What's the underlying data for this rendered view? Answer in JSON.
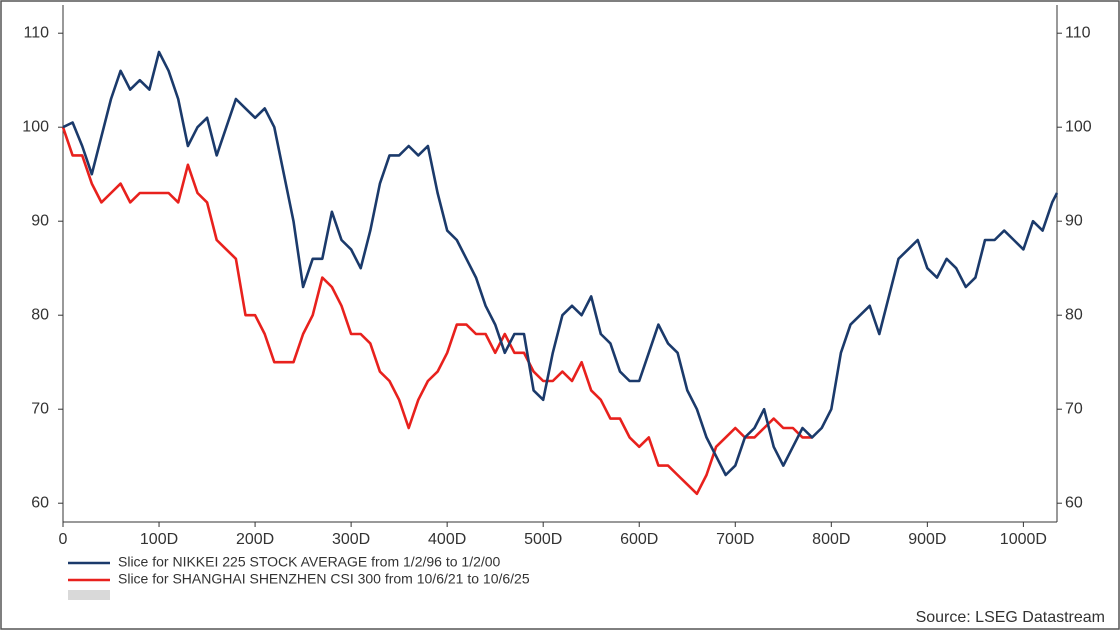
{
  "chart_data": {
    "type": "line",
    "xlim": [
      0,
      1035
    ],
    "xticks": [
      0,
      {
        "value": 100,
        "label": "100D"
      },
      {
        "value": 200,
        "label": "200D"
      },
      {
        "value": 300,
        "label": "300D"
      },
      {
        "value": 400,
        "label": "400D"
      },
      {
        "value": 500,
        "label": "500D"
      },
      {
        "value": 600,
        "label": "600D"
      },
      {
        "value": 700,
        "label": "700D"
      },
      {
        "value": 800,
        "label": "800D"
      },
      {
        "value": 900,
        "label": "900D"
      },
      {
        "value": 1000,
        "label": "1000D"
      }
    ],
    "ylim": [
      58,
      113
    ],
    "yticks": [
      60,
      70,
      80,
      90,
      100,
      110
    ],
    "y2lim": [
      58,
      113
    ],
    "y2ticks": [
      60,
      70,
      80,
      90,
      100,
      110
    ],
    "series": [
      {
        "name": "Slice for NIKKEI 225 STOCK AVERAGE from 1/2/96 to 1/2/00",
        "color": "#1b3a6b",
        "x": [
          0,
          10,
          20,
          30,
          40,
          50,
          60,
          70,
          80,
          90,
          100,
          110,
          120,
          130,
          140,
          150,
          160,
          170,
          180,
          190,
          200,
          210,
          220,
          230,
          240,
          250,
          260,
          270,
          280,
          290,
          300,
          310,
          320,
          330,
          340,
          350,
          360,
          370,
          380,
          390,
          400,
          410,
          420,
          430,
          440,
          450,
          460,
          470,
          480,
          490,
          500,
          510,
          520,
          530,
          540,
          550,
          560,
          570,
          580,
          590,
          600,
          610,
          620,
          630,
          640,
          650,
          660,
          670,
          680,
          690,
          700,
          710,
          720,
          730,
          740,
          750,
          760,
          770,
          780,
          790,
          800,
          810,
          820,
          830,
          840,
          850,
          860,
          870,
          880,
          890,
          900,
          910,
          920,
          930,
          940,
          950,
          960,
          970,
          980,
          990,
          1000,
          1010,
          1020,
          1030,
          1035
        ],
        "values": [
          100,
          100.5,
          98,
          95,
          99,
          103,
          106,
          104,
          105,
          104,
          108,
          106,
          103,
          98,
          100,
          101,
          97,
          100,
          103,
          102,
          101,
          102,
          100,
          95,
          90,
          83,
          86,
          86,
          91,
          88,
          87,
          85,
          89,
          94,
          97,
          97,
          98,
          97,
          98,
          93,
          89,
          88,
          86,
          84,
          81,
          79,
          76,
          78,
          78,
          72,
          71,
          76,
          80,
          81,
          80,
          82,
          78,
          77,
          74,
          73,
          73,
          76,
          79,
          77,
          76,
          72,
          70,
          67,
          65,
          63,
          64,
          67,
          68,
          70,
          66,
          64,
          66,
          68,
          67,
          68,
          70,
          76,
          79,
          80,
          81,
          78,
          82,
          86,
          87,
          88,
          85,
          84,
          86,
          85,
          83,
          84,
          88,
          88,
          89,
          88,
          87,
          90,
          89,
          92,
          93
        ]
      },
      {
        "name": "Slice for SHANGHAI SHENZHEN CSI 300 from 10/6/21 to 10/6/25",
        "color": "#e8211d",
        "x": [
          0,
          10,
          20,
          30,
          40,
          50,
          60,
          70,
          80,
          90,
          100,
          110,
          120,
          130,
          140,
          150,
          160,
          170,
          180,
          190,
          200,
          210,
          220,
          230,
          240,
          250,
          260,
          270,
          280,
          290,
          300,
          310,
          320,
          330,
          340,
          350,
          360,
          370,
          380,
          390,
          400,
          410,
          420,
          430,
          440,
          450,
          460,
          470,
          480,
          490,
          500,
          510,
          520,
          530,
          540,
          550,
          560,
          570,
          580,
          590,
          600,
          610,
          620,
          630,
          640,
          650,
          660,
          670,
          680,
          690,
          700,
          710,
          720,
          730,
          740,
          750,
          760,
          770,
          780
        ],
        "values": [
          100,
          97,
          97,
          94,
          92,
          93,
          94,
          92,
          93,
          93,
          93,
          93,
          92,
          96,
          93,
          92,
          88,
          87,
          86,
          80,
          80,
          78,
          75,
          75,
          75,
          78,
          80,
          84,
          83,
          81,
          78,
          78,
          77,
          74,
          73,
          71,
          68,
          71,
          73,
          74,
          76,
          79,
          79,
          78,
          78,
          76,
          78,
          76,
          76,
          74,
          73,
          73,
          74,
          73,
          75,
          72,
          71,
          69,
          69,
          67,
          66,
          67,
          64,
          64,
          63,
          62,
          61,
          63,
          66,
          67,
          68,
          67,
          67,
          68,
          69,
          68,
          68,
          67,
          67
        ]
      }
    ],
    "source": "Source: LSEG Datastream"
  }
}
